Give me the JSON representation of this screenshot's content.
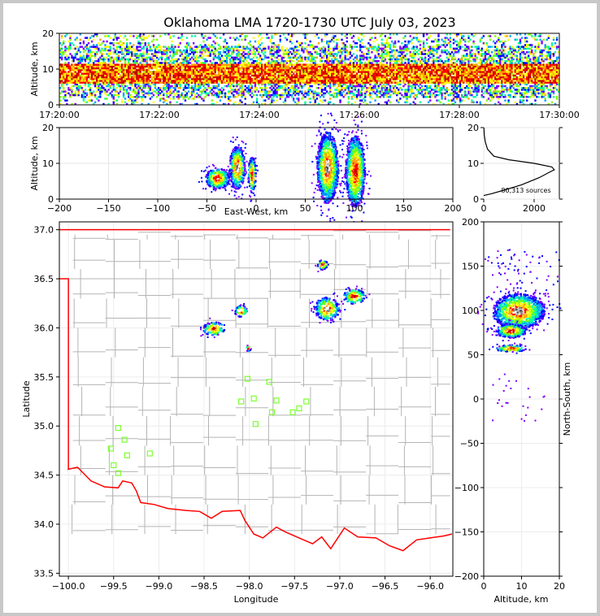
{
  "chart_data": [
    {
      "type": "heatmap",
      "panel": "time-altitude",
      "title": "Oklahoma LMA 1720-1730 UTC July 03, 2023",
      "ylabel": "Altitude, km",
      "xlabel": "",
      "x_ticks": [
        "17:20:00",
        "17:22:00",
        "17:24:00",
        "17:26:00",
        "17:28:00",
        "17:30:00"
      ],
      "y_ticks": [
        0,
        10,
        20
      ],
      "xlim": [
        "17:20:00",
        "17:30:00"
      ],
      "ylim": [
        0,
        20
      ],
      "core_altitude_km": [
        6,
        11
      ],
      "sparse_altitude_km": [
        0,
        20
      ]
    },
    {
      "type": "heatmap",
      "panel": "east-west-altitude",
      "xlabel": "East-West, km",
      "ylabel": "Altitude, km",
      "x_ticks": [
        -200,
        -150,
        -100,
        -50,
        0,
        50,
        100,
        150,
        200
      ],
      "y_ticks": [
        0,
        10,
        20
      ],
      "xlim": [
        -200,
        200
      ],
      "ylim": [
        0,
        20
      ],
      "cells": [
        {
          "x": -20,
          "z": 9,
          "halfwidth": 8,
          "halfheight": 6,
          "core": true
        },
        {
          "x": -40,
          "z": 6,
          "halfwidth": 12,
          "halfheight": 3,
          "core": false
        },
        {
          "x": -5,
          "z": 7,
          "halfwidth": 4,
          "halfheight": 5,
          "core": false
        },
        {
          "x": 72,
          "z": 9,
          "halfwidth": 11,
          "halfheight": 10,
          "core": true
        },
        {
          "x": 100,
          "z": 8,
          "halfwidth": 10,
          "halfheight": 10,
          "core": false
        }
      ]
    },
    {
      "type": "line",
      "panel": "source-count-altitude",
      "x_ticks": [
        0,
        2000
      ],
      "y_ticks": [
        0,
        10,
        20
      ],
      "xlim": [
        0,
        3000
      ],
      "ylim": [
        0,
        20
      ],
      "annotation": "80,313 sources",
      "profile": [
        [
          0,
          1
        ],
        [
          300,
          1.5
        ],
        [
          800,
          2.5
        ],
        [
          1500,
          4
        ],
        [
          2200,
          6
        ],
        [
          2600,
          7.5
        ],
        [
          2800,
          8.2
        ],
        [
          2700,
          9
        ],
        [
          2000,
          10
        ],
        [
          1000,
          11
        ],
        [
          400,
          12
        ],
        [
          150,
          14
        ],
        [
          60,
          16
        ],
        [
          20,
          18
        ],
        [
          5,
          20
        ]
      ]
    },
    {
      "type": "heatmap",
      "panel": "plan-view",
      "xlabel": "Longitude",
      "ylabel": "Latitude",
      "x_ticks": [
        -100.0,
        -99.5,
        -99.0,
        -98.5,
        -98.0,
        -97.5,
        -97.0,
        -96.5,
        -96.0
      ],
      "y_ticks": [
        33.5,
        34.0,
        34.5,
        35.0,
        35.5,
        36.0,
        36.5,
        37.0
      ],
      "xlim": [
        -100.1,
        -95.75
      ],
      "ylim": [
        33.47,
        37.08
      ],
      "cells": [
        {
          "lon": -97.15,
          "lat": 36.2,
          "rlon": 0.14,
          "rlat": 0.12,
          "core": true
        },
        {
          "lon": -96.85,
          "lat": 36.33,
          "rlon": 0.12,
          "rlat": 0.08,
          "core": false
        },
        {
          "lon": -98.1,
          "lat": 36.18,
          "rlon": 0.07,
          "rlat": 0.06,
          "core": true
        },
        {
          "lon": -98.4,
          "lat": 36.0,
          "rlon": 0.12,
          "rlat": 0.07,
          "core": false
        },
        {
          "lon": -98.02,
          "lat": 35.8,
          "rlon": 0.03,
          "rlat": 0.03,
          "core": false
        },
        {
          "lon": -97.2,
          "lat": 36.65,
          "rlon": 0.06,
          "rlat": 0.05,
          "core": false
        }
      ],
      "stations": [
        [
          -99.45,
          34.98
        ],
        [
          -99.38,
          34.86
        ],
        [
          -99.53,
          34.77
        ],
        [
          -99.35,
          34.7
        ],
        [
          -99.1,
          34.72
        ],
        [
          -99.5,
          34.6
        ],
        [
          -99.45,
          34.52
        ],
        [
          -98.02,
          35.48
        ],
        [
          -97.78,
          35.45
        ],
        [
          -98.09,
          35.25
        ],
        [
          -97.95,
          35.28
        ],
        [
          -97.7,
          35.26
        ],
        [
          -97.37,
          35.25
        ],
        [
          -97.45,
          35.18
        ],
        [
          -97.75,
          35.14
        ],
        [
          -97.52,
          35.14
        ],
        [
          -97.93,
          35.02
        ]
      ],
      "colors": {
        "state_border": "#ff0000",
        "counties": "#b4b4b4",
        "stations": "#7dff32"
      }
    },
    {
      "type": "heatmap",
      "panel": "north-south-altitude",
      "xlabel": "Altitude, km",
      "ylabel": "North-South, km",
      "x_ticks": [
        0,
        10,
        20
      ],
      "y_ticks": [
        -200,
        -150,
        -100,
        -50,
        0,
        50,
        100,
        150,
        200
      ],
      "xlim": [
        0,
        20
      ],
      "ylim": [
        -200,
        200
      ],
      "cells": [
        {
          "z": 9,
          "y": 100,
          "halfwidth": 7,
          "halfheight": 20,
          "core": true
        },
        {
          "z": 7,
          "y": 58,
          "halfwidth": 4,
          "halfheight": 4,
          "core": false
        },
        {
          "z": 7,
          "y": 78,
          "halfwidth": 4,
          "halfheight": 8,
          "core": false
        }
      ]
    }
  ]
}
